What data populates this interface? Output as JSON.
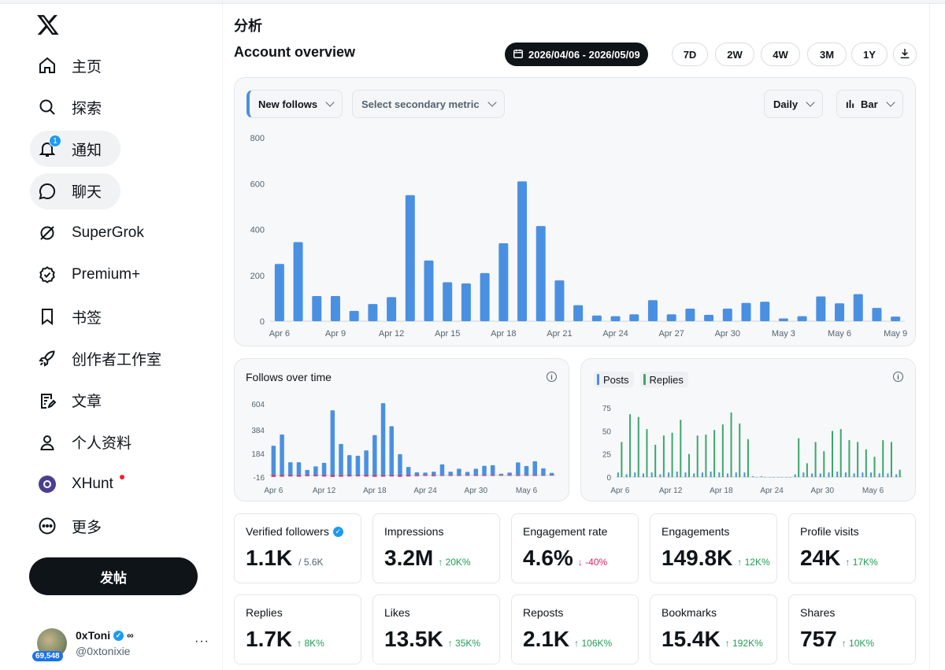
{
  "sidebar": {
    "items": [
      {
        "label": "主页",
        "icon": "home-icon"
      },
      {
        "label": "探索",
        "icon": "search-icon"
      },
      {
        "label": "通知",
        "icon": "bell-icon",
        "badge": "1"
      },
      {
        "label": "聊天",
        "icon": "chat-icon"
      },
      {
        "label": "SuperGrok",
        "icon": "grok-icon"
      },
      {
        "label": "Premium+",
        "icon": "verified-icon"
      },
      {
        "label": "书签",
        "icon": "bookmark-icon"
      },
      {
        "label": "创作者工作室",
        "icon": "rocket-icon"
      },
      {
        "label": "文章",
        "icon": "article-icon"
      },
      {
        "label": "个人资料",
        "icon": "person-icon"
      },
      {
        "label": "XHunt",
        "icon": "xhunt-icon"
      },
      {
        "label": "更多",
        "icon": "more-icon"
      }
    ],
    "post_label": "发帖",
    "profile": {
      "name": "0xToni",
      "handle": "@0xtonixie",
      "badge": "69,548",
      "more": "···"
    }
  },
  "header": {
    "page_title": "分析",
    "section_title": "Account overview",
    "date_range": "2026/04/06 - 2026/05/09",
    "ranges": [
      "7D",
      "2W",
      "4W",
      "3M",
      "1Y"
    ]
  },
  "main_chart": {
    "primary_metric": "New follows",
    "secondary_metric": "Select secondary metric",
    "granularity": "Daily",
    "chart_type": "Bar"
  },
  "chart_data": [
    {
      "type": "bar",
      "y_ticks": [
        "800",
        "600",
        "400",
        "200",
        "0"
      ],
      "x_ticks": [
        "Apr 6",
        "Apr 9",
        "Apr 12",
        "Apr 15",
        "Apr 18",
        "Apr 21",
        "Apr 24",
        "Apr 27",
        "Apr 30",
        "May 3",
        "May 6",
        "May 9"
      ],
      "ylim": [
        0,
        800
      ],
      "color": "#4a90e2",
      "values": [
        250,
        345,
        110,
        110,
        45,
        75,
        105,
        550,
        265,
        170,
        165,
        210,
        340,
        610,
        415,
        178,
        70,
        25,
        22,
        30,
        92,
        30,
        55,
        28,
        55,
        80,
        85,
        12,
        22,
        108,
        78,
        118,
        58,
        20
      ]
    },
    {
      "type": "bar",
      "title": "Follows over time",
      "y_ticks": [
        "604",
        "384",
        "184",
        "-16"
      ],
      "x_ticks": [
        "Apr 6",
        "Apr 12",
        "Apr 18",
        "Apr 24",
        "Apr 30",
        "May 6"
      ],
      "ylim": [
        -16,
        604
      ],
      "color": "#4a90e2",
      "negative_color": "#e0245e",
      "values": [
        250,
        345,
        110,
        110,
        45,
        75,
        105,
        550,
        265,
        170,
        165,
        210,
        340,
        610,
        415,
        178,
        70,
        25,
        22,
        30,
        92,
        30,
        55,
        28,
        55,
        80,
        85,
        12,
        22,
        108,
        78,
        118,
        58,
        20
      ],
      "negative_values": [
        -14,
        -12,
        -10,
        -12,
        -8,
        -9,
        -11,
        -14,
        -12,
        -10,
        -9,
        -11,
        -13,
        -12,
        -10,
        -13,
        -10,
        -8,
        -6,
        -8,
        -6,
        -6,
        -6,
        -5,
        -6,
        -6,
        -6,
        -5,
        -5,
        -6,
        -5,
        -6,
        -5,
        -4
      ]
    },
    {
      "type": "bar",
      "y_ticks": [
        "75",
        "50",
        "25",
        "0"
      ],
      "x_ticks": [
        "Apr 6",
        "Apr 12",
        "Apr 18",
        "Apr 24",
        "Apr 30",
        "May 6"
      ],
      "ylim": [
        0,
        75
      ],
      "series": [
        {
          "name": "Posts",
          "color": "#4a90e2",
          "values": [
            5,
            3,
            5,
            4,
            5,
            3,
            5,
            6,
            5,
            4,
            5,
            6,
            5,
            4,
            5,
            5,
            1,
            1,
            0,
            0,
            0,
            3,
            5,
            4,
            4,
            5,
            6,
            5,
            4,
            5,
            5,
            4,
            4,
            3
          ]
        },
        {
          "name": "Replies",
          "color": "#3aa76d",
          "values": [
            38,
            68,
            65,
            52,
            35,
            45,
            48,
            62,
            25,
            45,
            46,
            51,
            57,
            70,
            58,
            41,
            0,
            0,
            0,
            0,
            0,
            42,
            15,
            38,
            28,
            50,
            52,
            40,
            38,
            30,
            22,
            40,
            38,
            8
          ]
        }
      ]
    }
  ],
  "follows_card": {
    "title": "Follows over time"
  },
  "posts_card": {
    "legend": [
      "Posts",
      "Replies"
    ]
  },
  "stats": [
    {
      "label": "Verified followers",
      "value": "1.1K",
      "sub": "/ 5.6K",
      "delta": "",
      "verified": true
    },
    {
      "label": "Impressions",
      "value": "3.2M",
      "delta": "↑ 20K%",
      "dir": "up"
    },
    {
      "label": "Engagement rate",
      "value": "4.6%",
      "delta": "↓ -40%",
      "dir": "down"
    },
    {
      "label": "Engagements",
      "value": "149.8K",
      "delta": "↑ 12K%",
      "dir": "up"
    },
    {
      "label": "Profile visits",
      "value": "24K",
      "delta": "↑ 17K%",
      "dir": "up"
    },
    {
      "label": "Replies",
      "value": "1.7K",
      "delta": "↑ 8K%",
      "dir": "up"
    },
    {
      "label": "Likes",
      "value": "13.5K",
      "delta": "↑ 35K%",
      "dir": "up"
    },
    {
      "label": "Reposts",
      "value": "2.1K",
      "delta": "↑ 106K%",
      "dir": "up"
    },
    {
      "label": "Bookmarks",
      "value": "15.4K",
      "delta": "↑ 192K%",
      "dir": "up"
    },
    {
      "label": "Shares",
      "value": "757",
      "delta": "↑ 10K%",
      "dir": "up"
    }
  ]
}
